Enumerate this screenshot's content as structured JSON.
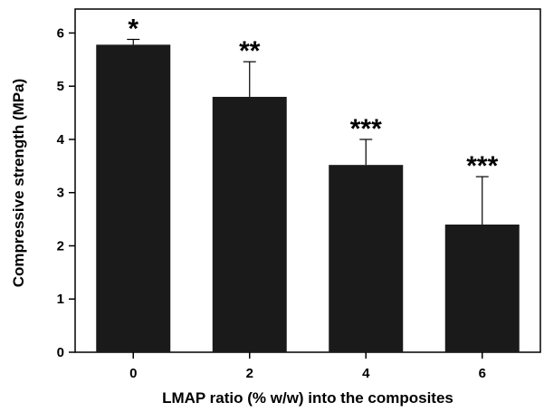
{
  "chart_data": {
    "type": "bar",
    "xlabel": "LMAP ratio (% w/w) into the composites",
    "ylabel": "Compressive strength (MPa)",
    "ylim": [
      0,
      6.45
    ],
    "yticks": [
      "0",
      "1",
      "2",
      "3",
      "4",
      "5",
      "6"
    ],
    "categories": [
      "0",
      "2",
      "4",
      "6"
    ],
    "values": [
      5.78,
      4.8,
      3.52,
      2.4
    ],
    "errors": [
      0.1,
      0.66,
      0.48,
      0.9
    ],
    "annotations": [
      "*",
      "**",
      "***",
      "***"
    ],
    "grid": false,
    "bar_color": "#1a1a1a"
  }
}
